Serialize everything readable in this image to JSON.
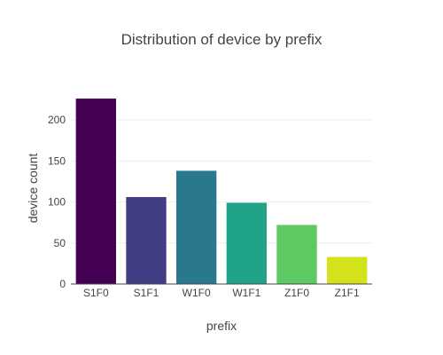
{
  "chart_data": {
    "type": "bar",
    "title": "Distribution of device by prefix",
    "xlabel": "prefix",
    "ylabel": "device count",
    "categories": [
      "S1F0",
      "S1F1",
      "W1F0",
      "W1F1",
      "Z1F0",
      "Z1F1"
    ],
    "values": [
      226,
      106,
      138,
      99,
      72,
      33
    ],
    "colors": [
      "#440154",
      "#413d84",
      "#2a788e",
      "#20a387",
      "#5ec962",
      "#d4e21b"
    ],
    "ylim": [
      0,
      238
    ],
    "yticks": [
      0,
      50,
      100,
      150,
      200
    ],
    "grid": true,
    "legend": "none"
  }
}
